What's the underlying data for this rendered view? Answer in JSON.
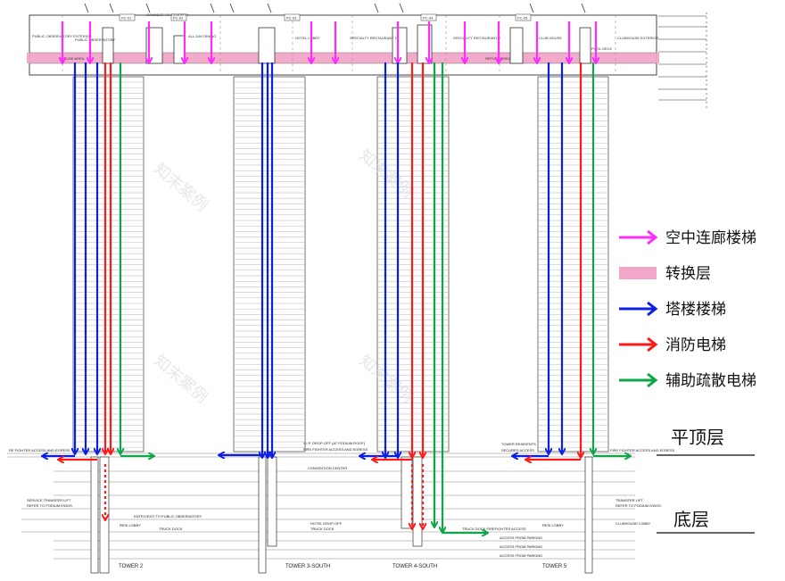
{
  "colors": {
    "sky_bridge_stair": "#ff2bff",
    "transfer_floor": "#f2a6c8",
    "tower_stair": "#0a1ee6",
    "fire_elevator": "#ff1a1a",
    "evacuation_elevator": "#0fa64a"
  },
  "legend": [
    {
      "key": "sky_bridge_stair",
      "label": "空中连廊楼梯",
      "symbol": "magenta-arrow-icon"
    },
    {
      "key": "transfer_floor",
      "label": "转换层",
      "symbol": "pink-band-swatch"
    },
    {
      "key": "tower_stair",
      "label": "塔楼楼梯",
      "symbol": "blue-arrow-icon"
    },
    {
      "key": "fire_elevator",
      "label": "消防电梯",
      "symbol": "red-arrow-icon"
    },
    {
      "key": "evacuation_elevator",
      "label": "辅助疏散电梯",
      "symbol": "green-arrow-icon"
    }
  ],
  "levels": {
    "roof": "平顶层",
    "ground": "底层"
  },
  "top_labels": {
    "public_observatory_exterior": "PUBLIC OBSERVATORY EXTERIOR",
    "public_observatory": "PUBLIC OBSERVATORY",
    "all_day_dining": "ALL-DAY DINING",
    "hotel_lobby": "HOTEL LOBBY",
    "specialty_restaurant_1": "SPECIALTY RESTAURANT 1",
    "specialty_restaurant_2": "SPECIALTY RESTAURANT 2",
    "club_house": "CLUB HOUSE",
    "clubhouse_exterior": "CLUBHOUSE EXTERIOR",
    "pool_deck": "POOL DECK",
    "connect_to_t3_north": "CONNECT TO T3-NORTH",
    "refuge_area_1": "REFUGE AREA",
    "refuge_area_2": "REFUGE AREA",
    "pc_01": "PC-01",
    "pc_02": "PC-02",
    "pc_03": "PC-03",
    "pc_04": "PC-04",
    "pc_05": "PC-05"
  },
  "podium_labels": {
    "fire_access_left": "RE FIGHTER ACCESS AND EGRESS",
    "vip_dropoff": "V.I.P. DROP-OFF (AT PODIUM ROOF)",
    "fire_access_mid": "FIRE FIGHTER ACCESS AND EGRESS",
    "tower_residents": "TOWER RESIDENTS",
    "secured_access": "SECURED ACCESS",
    "fire_access_right": "FIRE FIGHTER ACCESS AND EGRESS",
    "convention_center": "CONVENTION CENTER",
    "service_transfer_lift": "SERVICE TRANSFER LIFT",
    "refer_to_podium_left": "REFER TO PODIUM DWGS.",
    "transfer_lift": "TRANSFER LIFT",
    "refer_to_podium_right": "REFER TO PODIUM DWGS.",
    "entry_exit_observatory": "ENTRY/EXIT TO PUBLIC OBSERVATORY",
    "resi_lobby_left": "RESI LOBBY",
    "truck_dock_left": "TRUCK DOCK",
    "hotel_dropoff": "HOTEL DROP-OFF",
    "truck_dock_mid": "TRUCK DOCK",
    "truck_dock_fire": "TRUCK DOCK FIREFIGHTER ACCESS",
    "resi_lobby_right": "RESI LOBBY",
    "clubhouse_lobby": "CLUBHOUSE LOBBY",
    "access_parking_1": "ACCESS FROM PARKING",
    "access_parking_2": "ACCESS FROM PARKING",
    "access_parking_3": "ACCESS FROM PARKING"
  },
  "towers": [
    "TOWER 2",
    "TOWER 3-SOUTH",
    "TOWER 4-SOUTH",
    "TOWER 5"
  ],
  "watermark": "知末案例"
}
